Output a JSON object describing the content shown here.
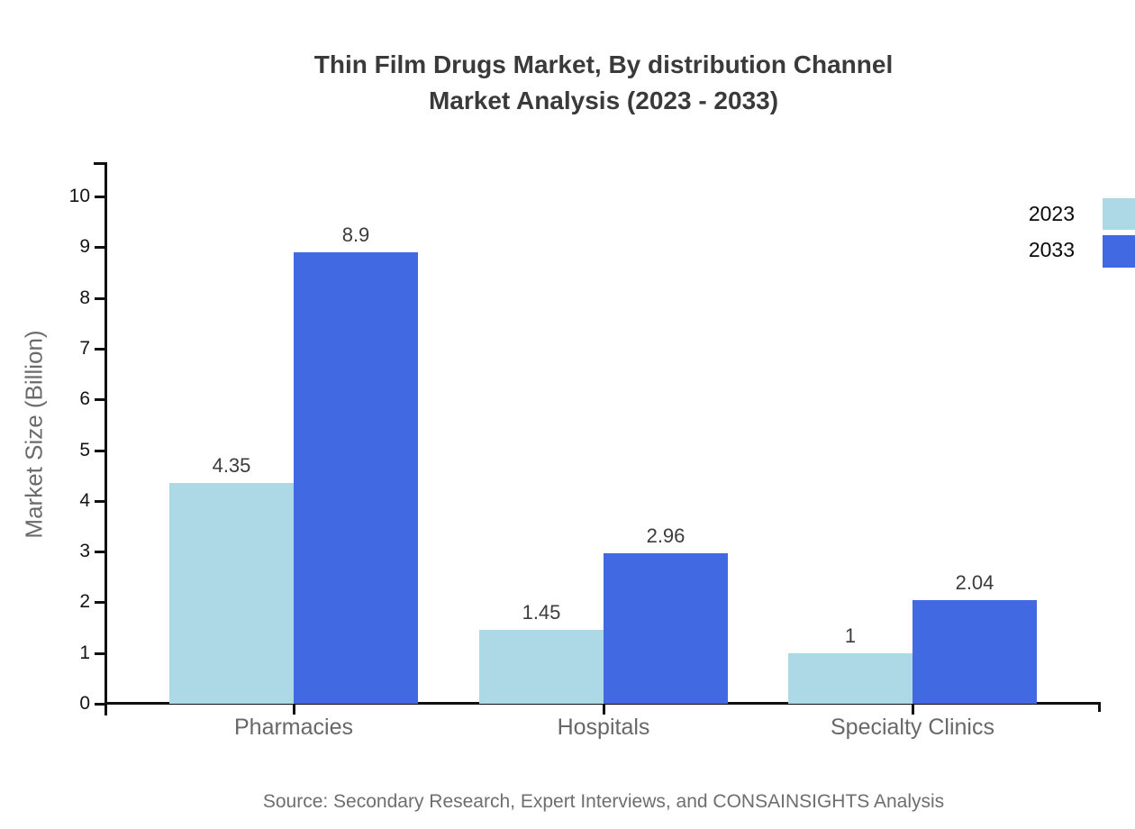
{
  "title": {
    "line1": "Thin Film Drugs Market, By distribution Channel",
    "line2": "Market Analysis (2023 - 2033)"
  },
  "source": "Source: Secondary Research, Expert Interviews, and CONSAINSIGHTS Analysis",
  "legend": {
    "items": [
      {
        "label": "2023",
        "color": "#add8e6"
      },
      {
        "label": "2033",
        "color": "#4169e1"
      }
    ]
  },
  "chart_data": {
    "type": "bar",
    "title": "Thin Film Drugs Market, By distribution Channel Market Analysis (2023 - 2033)",
    "categories": [
      "Pharmacies",
      "Hospitals",
      "Specialty Clinics"
    ],
    "series": [
      {
        "name": "2023",
        "color": "#add8e6",
        "values": [
          4.35,
          1.45,
          1
        ]
      },
      {
        "name": "2033",
        "color": "#4169e1",
        "values": [
          8.9,
          2.96,
          2.04
        ]
      }
    ],
    "value_labels": [
      [
        "4.35",
        "1.45",
        "1"
      ],
      [
        "8.9",
        "2.96",
        "2.04"
      ]
    ],
    "xlabel": "",
    "ylabel": "Market Size (Billion)",
    "ylim": [
      0,
      10
    ],
    "yticks": [
      0,
      1,
      2,
      3,
      4,
      5,
      6,
      7,
      8,
      9,
      10
    ],
    "grid": false,
    "legend_position": "top-right"
  },
  "colors": {
    "axis": "#111111",
    "background": "#ffffff",
    "title_text": "#3a3a3a",
    "tick_text": "#141414",
    "category_text": "#686868",
    "value_text": "#3c3c3c",
    "muted_text": "#6e6e6e"
  }
}
